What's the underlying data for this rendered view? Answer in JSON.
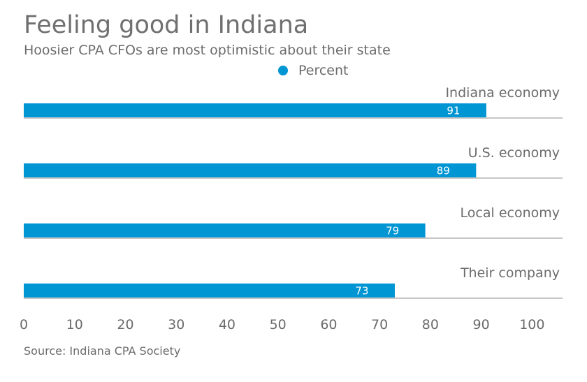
{
  "title": "Feeling good in Indiana",
  "subtitle": "Hoosier CPA CFOs are most optimistic about their state",
  "legend": {
    "label": "Percent"
  },
  "source": "Source: Indiana CPA Society",
  "colors": {
    "bar": "#0095d3",
    "axis": "#b3b3b3",
    "text": "#6b6b6b"
  },
  "chart_data": {
    "type": "bar",
    "orientation": "horizontal",
    "title": "Feeling good in Indiana",
    "subtitle": "Hoosier CPA CFOs are most optimistic about their state",
    "categories": [
      "Indiana economy",
      "U.S. economy",
      "Local economy",
      "Their company"
    ],
    "series": [
      {
        "name": "Percent",
        "values": [
          91,
          89,
          79,
          73
        ]
      }
    ],
    "xlim": [
      0,
      106
    ],
    "xticks": [
      0,
      10,
      20,
      30,
      40,
      50,
      60,
      70,
      80,
      90,
      100
    ],
    "grid": false,
    "legend_position": "top-center"
  }
}
